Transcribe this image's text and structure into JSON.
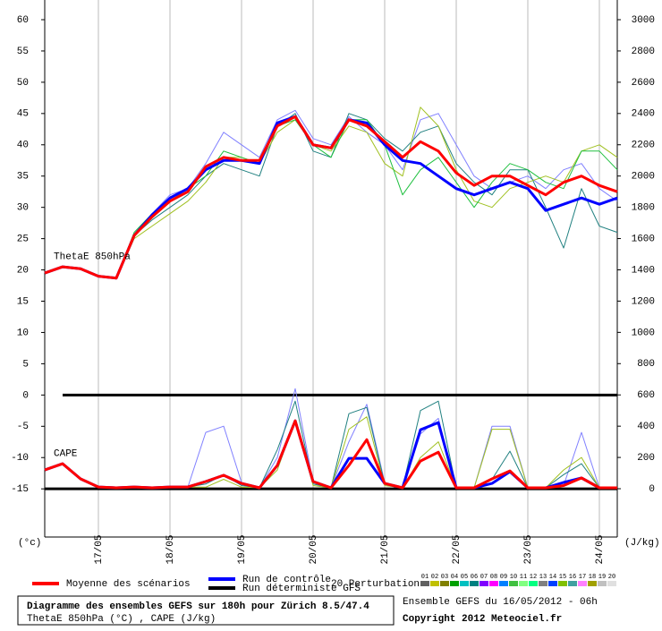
{
  "chart_data": {
    "type": "line",
    "title": "Diagramme des ensembles GEFS sur 180h pour Zürich 8.5/47.4",
    "subtitle": "ThetaE 850hPa (°C) , CAPE (J/kg)",
    "run_info": "Ensemble GEFS du 16/05/2012 - 06h",
    "copyright": "Copyright 2012 Meteociel.fr",
    "y_label": "(°c)",
    "y2_label": "(J/kg)",
    "annotations": [
      {
        "text": "ThetaE 850hPa",
        "x": 0,
        "y": 21
      },
      {
        "text": "CAPE",
        "x": 0,
        "y": -10.5
      }
    ],
    "xlim": [
      0,
      192
    ],
    "xticks": [
      {
        "value": 18,
        "label": "17/05"
      },
      {
        "value": 42,
        "label": "18/05"
      },
      {
        "value": 66,
        "label": "19/05"
      },
      {
        "value": 90,
        "label": "20/05"
      },
      {
        "value": 114,
        "label": "21/05"
      },
      {
        "value": 138,
        "label": "22/05"
      },
      {
        "value": 162,
        "label": "23/05"
      },
      {
        "value": 186,
        "label": "24/05"
      }
    ],
    "ylim": [
      -22.7,
      60
    ],
    "yticks": [
      60,
      55,
      50,
      45,
      40,
      35,
      30,
      25,
      20,
      15,
      10,
      5,
      0,
      -5,
      -10,
      -15
    ],
    "y2lim": [
      -309,
      3000
    ],
    "y2ticks": [
      3000,
      2800,
      2600,
      2400,
      2200,
      2000,
      1800,
      1600,
      1400,
      1200,
      1000,
      800,
      600,
      400,
      200,
      0
    ],
    "reference_lines": [
      0,
      -15
    ],
    "grid": true,
    "x": [
      0,
      6,
      12,
      18,
      24,
      30,
      36,
      42,
      48,
      54,
      60,
      66,
      72,
      78,
      84,
      90,
      96,
      102,
      108,
      114,
      120,
      126,
      132,
      138,
      144,
      150,
      156,
      162,
      168,
      174,
      180,
      186,
      192
    ],
    "perturbations_label": "20 Perturbations",
    "perturbation_codes": [
      {
        "label": "01",
        "color": "#606060"
      },
      {
        "label": "02",
        "color": "#c0c000"
      },
      {
        "label": "03",
        "color": "#808000"
      },
      {
        "label": "04",
        "color": "#00a000"
      },
      {
        "label": "05",
        "color": "#00c0c0"
      },
      {
        "label": "06",
        "color": "#008080"
      },
      {
        "label": "07",
        "color": "#8000ff"
      },
      {
        "label": "08",
        "color": "#ff00ff"
      },
      {
        "label": "09",
        "color": "#0080ff"
      },
      {
        "label": "10",
        "color": "#40c040"
      },
      {
        "label": "11",
        "color": "#80ff80"
      },
      {
        "label": "12",
        "color": "#00ff80"
      },
      {
        "label": "13",
        "color": "#808080"
      },
      {
        "label": "14",
        "color": "#0040ff"
      },
      {
        "label": "15",
        "color": "#80c000"
      },
      {
        "label": "16",
        "color": "#40a0a0"
      },
      {
        "label": "17",
        "color": "#ff80ff"
      },
      {
        "label": "18",
        "color": "#a0a000"
      },
      {
        "label": "19",
        "color": "#c0c0c0"
      },
      {
        "label": "20",
        "color": "#e0e0e0"
      }
    ],
    "series": [
      {
        "name": "01",
        "color": "#8080ff",
        "width": 1,
        "values": [
          19.5,
          20.5,
          20.2,
          19,
          18.7,
          25.5,
          29,
          32,
          33,
          37,
          42,
          40,
          38,
          44,
          45.5,
          41,
          40,
          44.5,
          42,
          40,
          36,
          44,
          45,
          40,
          35,
          33,
          34,
          35,
          33,
          36,
          37,
          33,
          31
        ]
      },
      {
        "name": "02",
        "color": "#208080",
        "width": 1,
        "values": [
          19.5,
          20.5,
          20.2,
          19,
          18.7,
          25.5,
          28,
          30,
          32,
          35,
          37,
          36,
          35,
          43,
          45,
          39,
          38,
          45,
          44,
          41,
          39,
          42,
          43,
          37,
          34,
          32,
          36,
          36,
          30,
          23.5,
          33,
          27,
          26
        ]
      },
      {
        "name": "03",
        "color": "#a0c020",
        "width": 1,
        "values": [
          19.5,
          20.5,
          20.2,
          19,
          18.7,
          25,
          27,
          29,
          31,
          34,
          38,
          38,
          37,
          42,
          44,
          40,
          39,
          43,
          42,
          37,
          35,
          46,
          43,
          36,
          31,
          30,
          33,
          34,
          35,
          34,
          39,
          40,
          38
        ]
      },
      {
        "name": "04",
        "color": "#20c040",
        "width": 1,
        "values": [
          19.5,
          20.5,
          20.2,
          19,
          18.7,
          26,
          29,
          31,
          33,
          35,
          39,
          38,
          37,
          43,
          44,
          40,
          38,
          44,
          44,
          40,
          32,
          36,
          38,
          34,
          30,
          34,
          37,
          36,
          34,
          33,
          39,
          39,
          36
        ]
      },
      {
        "name": "01",
        "color": "#8080ff",
        "width": 1,
        "axis": "y2",
        "values": [
          120,
          160,
          63,
          11,
          6,
          11,
          6,
          11,
          11,
          360,
          400,
          40,
          6,
          200,
          640,
          40,
          6,
          300,
          540,
          40,
          6,
          350,
          450,
          6,
          6,
          400,
          400,
          6,
          6,
          20,
          360,
          6,
          6
        ]
      },
      {
        "name": "02",
        "color": "#208080",
        "width": 1,
        "axis": "y2",
        "values": [
          120,
          160,
          63,
          11,
          6,
          11,
          6,
          11,
          11,
          30,
          90,
          20,
          6,
          250,
          560,
          30,
          6,
          480,
          520,
          30,
          6,
          500,
          560,
          6,
          6,
          60,
          240,
          6,
          6,
          90,
          160,
          6,
          6
        ]
      },
      {
        "name": "03",
        "color": "#a0c020",
        "width": 1,
        "axis": "y2",
        "values": [
          120,
          160,
          63,
          11,
          6,
          11,
          6,
          11,
          11,
          10,
          60,
          10,
          6,
          120,
          440,
          20,
          6,
          380,
          460,
          20,
          6,
          200,
          300,
          6,
          6,
          380,
          380,
          6,
          6,
          120,
          200,
          6,
          6
        ]
      },
      {
        "name": "Run de contrôle",
        "color": "#0000ff",
        "width": 3,
        "values": [
          19.5,
          20.5,
          20.2,
          19,
          18.7,
          25.5,
          28.8,
          31.5,
          33,
          36,
          37.5,
          37.5,
          37,
          43.5,
          44.5,
          40,
          39.5,
          44,
          43.5,
          40,
          37.5,
          37,
          35,
          33,
          32,
          33,
          34,
          33,
          29.5,
          30.5,
          31.5,
          30.5,
          31.5
        ]
      },
      {
        "name": "Run de contrôle",
        "color": "#0000ff",
        "width": 3,
        "axis": "y2",
        "values": [
          120,
          160,
          63,
          11,
          6,
          11,
          6,
          11,
          11,
          46,
          86,
          34,
          6,
          149,
          434,
          46,
          6,
          194,
          194,
          34,
          6,
          377,
          423,
          6,
          6,
          34,
          109,
          6,
          6,
          40,
          69,
          6,
          6
        ]
      },
      {
        "name": "Moyenne des scénarios",
        "color": "#ff0000",
        "width": 3,
        "values": [
          19.5,
          20.5,
          20.2,
          19,
          18.7,
          25.5,
          28.5,
          31,
          32.5,
          36.5,
          38,
          37.5,
          37.5,
          43,
          44.5,
          40,
          39.5,
          44,
          43,
          40.5,
          38,
          40.5,
          39,
          35.5,
          33.5,
          35,
          35,
          33.5,
          32,
          34,
          35,
          33.5,
          32.5
        ]
      },
      {
        "name": "Moyenne des scénarios",
        "color": "#ff0000",
        "width": 3,
        "axis": "y2",
        "values": [
          120,
          160,
          63,
          11,
          6,
          11,
          6,
          11,
          11,
          46,
          86,
          34,
          6,
          149,
          434,
          46,
          6,
          149,
          314,
          34,
          6,
          177,
          234,
          6,
          6,
          63,
          114,
          6,
          6,
          20,
          69,
          6,
          6
        ]
      }
    ],
    "legend_entries": [
      {
        "label": "Moyenne des scénarios",
        "color": "#ff0000"
      },
      {
        "label": "Run de contrôle",
        "color": "#0000ff"
      },
      {
        "label": "Run déterministe GFS",
        "color": "#000000"
      }
    ]
  }
}
